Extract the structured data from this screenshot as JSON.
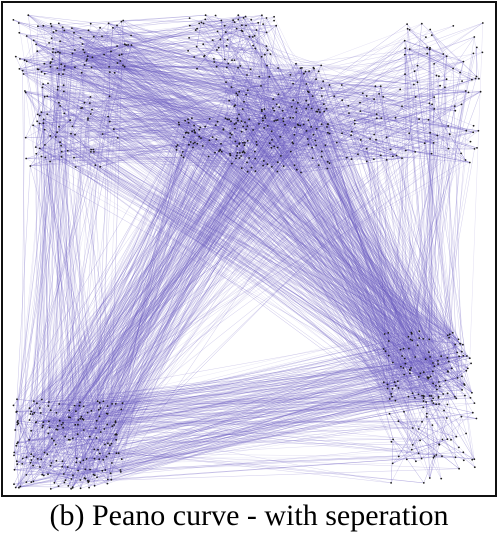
{
  "figure": {
    "caption": "(b)  Peano curve - with seperation",
    "edge_color": "#6a5bc0",
    "node_color": "#1a1a1a",
    "background": "#ffffff",
    "frame_color": "#111111"
  }
}
